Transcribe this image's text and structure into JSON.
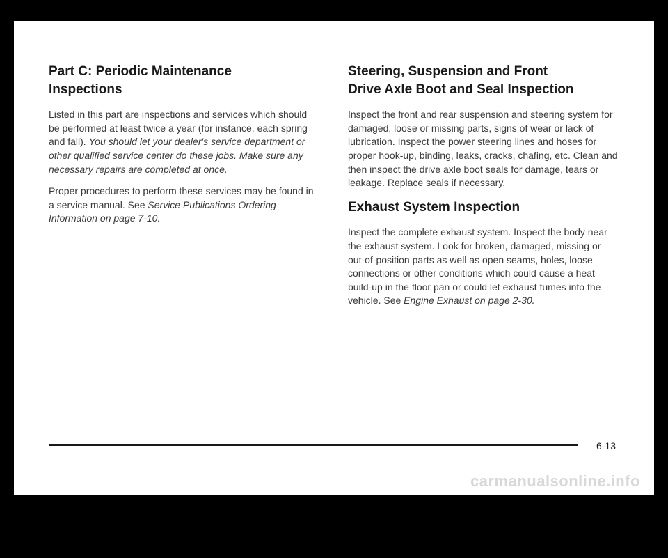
{
  "left": {
    "heading_line1": "Part C: Periodic Maintenance",
    "heading_line2": "Inspections",
    "p1_plain": "Listed in this part are inspections and services which should be performed at least twice a year (for instance, each spring and fall). ",
    "p1_italic": "You should let your dealer's service department or other qualified service center do these jobs. Make sure any necessary repairs are completed at once.",
    "p2_plain": "Proper procedures to perform these services may be found in a service manual. See ",
    "p2_italic": "Service Publications Ordering Information on page 7-10."
  },
  "right": {
    "heading1_line1": "Steering, Suspension and Front",
    "heading1_line2": "Drive Axle Boot and Seal Inspection",
    "p1": "Inspect the front and rear suspension and steering system for damaged, loose or missing parts, signs of wear or lack of lubrication. Inspect the power steering lines and hoses for proper hook-up, binding, leaks, cracks, chafing, etc. Clean and then inspect the drive axle boot seals for damage, tears or leakage. Replace seals if necessary.",
    "heading2": "Exhaust System Inspection",
    "p2_plain": "Inspect the complete exhaust system. Inspect the body near the exhaust system. Look for broken, damaged, missing or out-of-position parts as well as open seams, holes, loose connections or other conditions which could cause a heat build-up in the floor pan or could let exhaust fumes into the vehicle. See ",
    "p2_italic": "Engine Exhaust on page 2-30."
  },
  "page_number": "6-13",
  "watermark": "carmanualsonline.info"
}
